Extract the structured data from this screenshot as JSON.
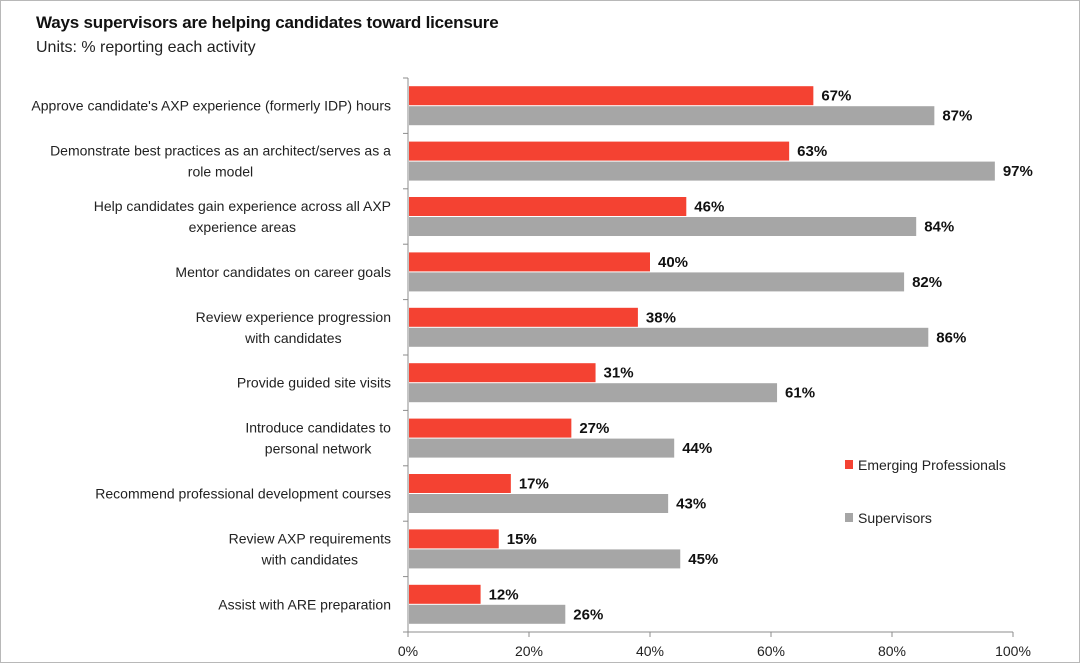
{
  "title": "Ways supervisors are helping candidates toward licensure",
  "subtitle": "Units: % reporting each activity",
  "colors": {
    "emerging": "#f44232",
    "supervisors": "#a6a6a6",
    "axis": "#8c8c8c"
  },
  "chart_data": {
    "type": "bar",
    "orientation": "horizontal",
    "title": "Ways supervisors are helping candidates toward licensure",
    "subtitle": "Units: % reporting each activity",
    "categories": [
      [
        "Approve candidate's AXP experience (formerly IDP) hours"
      ],
      [
        "Demonstrate best practices as an architect/serves as a",
        "role model"
      ],
      [
        "Help candidates gain experience across all AXP",
        "experience areas"
      ],
      [
        "Mentor candidates on career goals"
      ],
      [
        "Review experience progression",
        "with candidates"
      ],
      [
        "Provide guided site visits"
      ],
      [
        "Introduce candidates to",
        "personal network"
      ],
      [
        "Recommend professional development courses"
      ],
      [
        "Review AXP requirements",
        "with candidates"
      ],
      [
        "Assist with ARE preparation"
      ]
    ],
    "series": [
      {
        "name": "Emerging Professionals",
        "values": [
          67,
          63,
          46,
          40,
          38,
          31,
          27,
          17,
          15,
          12
        ]
      },
      {
        "name": "Supervisors",
        "values": [
          87,
          97,
          84,
          82,
          86,
          61,
          44,
          43,
          45,
          26
        ]
      }
    ],
    "value_suffix": "%",
    "xlim": [
      0,
      100
    ],
    "xticks": [
      "0%",
      "20%",
      "40%",
      "60%",
      "80%",
      "100%"
    ],
    "grid": false,
    "legend_position": "right"
  }
}
